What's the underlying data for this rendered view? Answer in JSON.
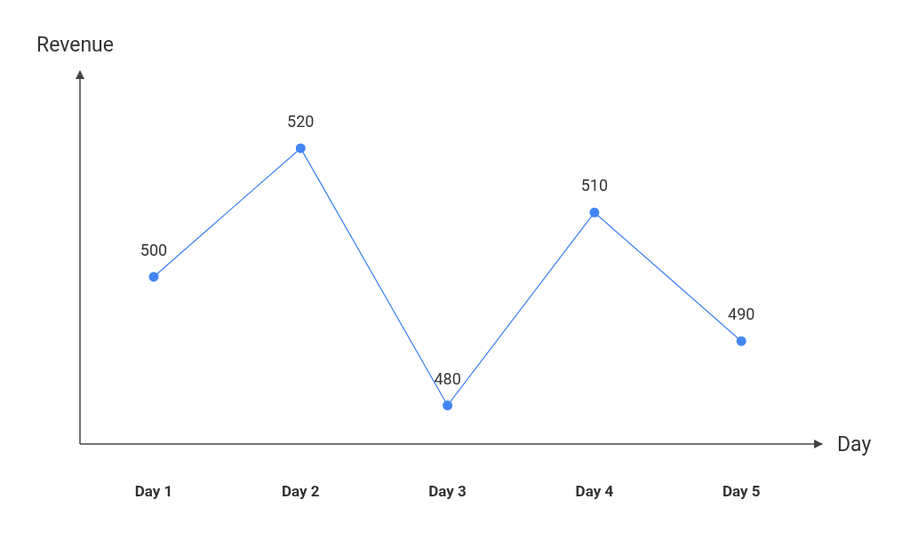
{
  "chart_data": {
    "type": "line",
    "xlabel": "Day",
    "ylabel": "Revenue",
    "categories": [
      "Day 1",
      "Day 2",
      "Day 3",
      "Day 4",
      "Day 5"
    ],
    "series": [
      {
        "color": "#4285f4",
        "values": [
          500,
          520,
          480,
          510,
          490
        ]
      }
    ],
    "ylim": [
      474,
      532
    ],
    "data_labels": true,
    "marker": "circle",
    "tick_labels": "x"
  }
}
